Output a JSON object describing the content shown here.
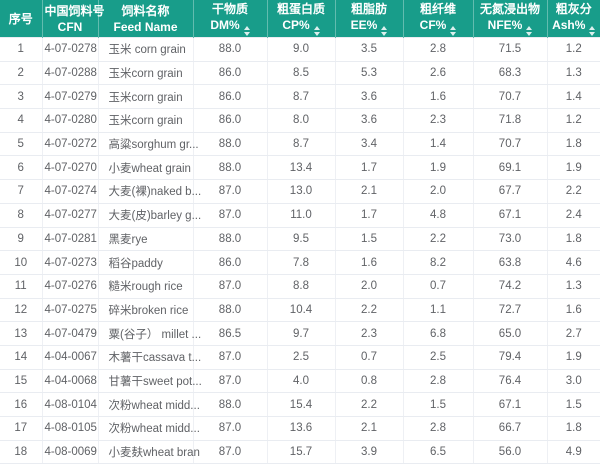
{
  "colors": {
    "header_bg": "#189d8a",
    "header_text": "#ffffff",
    "row_border": "#e9ecf1",
    "cell_text": "#606266"
  },
  "table": {
    "columns": [
      {
        "key": "index",
        "zh": "序号",
        "en": "",
        "sortable": false
      },
      {
        "key": "cfn",
        "zh": "中国饲料号",
        "en": "CFN",
        "sortable": false
      },
      {
        "key": "name",
        "zh": "饲料名称",
        "en": "Feed Name",
        "sortable": false
      },
      {
        "key": "dm",
        "zh": "干物质",
        "en": "DM%",
        "sortable": true
      },
      {
        "key": "cp",
        "zh": "粗蛋白质",
        "en": "CP%",
        "sortable": true
      },
      {
        "key": "ee",
        "zh": "粗脂肪",
        "en": "EE%",
        "sortable": true
      },
      {
        "key": "cf",
        "zh": "粗纤维",
        "en": "CF%",
        "sortable": true
      },
      {
        "key": "nfe",
        "zh": "无氮浸出物",
        "en": "NFE%",
        "sortable": true
      },
      {
        "key": "ash",
        "zh": "粗灰分",
        "en": "Ash%",
        "sortable": true
      }
    ],
    "rows": [
      {
        "index": "1",
        "cfn": "4-07-0278",
        "name": "玉米 corn grain",
        "dm": "88.0",
        "cp": "9.0",
        "ee": "3.5",
        "cf": "2.8",
        "nfe": "71.5",
        "ash": "1.2"
      },
      {
        "index": "2",
        "cfn": "4-07-0288",
        "name": "玉米corn grain",
        "dm": "86.0",
        "cp": "8.5",
        "ee": "5.3",
        "cf": "2.6",
        "nfe": "68.3",
        "ash": "1.3"
      },
      {
        "index": "3",
        "cfn": "4-07-0279",
        "name": "玉米corn grain",
        "dm": "86.0",
        "cp": "8.7",
        "ee": "3.6",
        "cf": "1.6",
        "nfe": "70.7",
        "ash": "1.4"
      },
      {
        "index": "4",
        "cfn": "4-07-0280",
        "name": "玉米corn grain",
        "dm": "86.0",
        "cp": "8.0",
        "ee": "3.6",
        "cf": "2.3",
        "nfe": "71.8",
        "ash": "1.2"
      },
      {
        "index": "5",
        "cfn": "4-07-0272",
        "name": "高粱sorghum gr...",
        "dm": "88.0",
        "cp": "8.7",
        "ee": "3.4",
        "cf": "1.4",
        "nfe": "70.7",
        "ash": "1.8"
      },
      {
        "index": "6",
        "cfn": "4-07-0270",
        "name": "小麦wheat grain",
        "dm": "88.0",
        "cp": "13.4",
        "ee": "1.7",
        "cf": "1.9",
        "nfe": "69.1",
        "ash": "1.9"
      },
      {
        "index": "7",
        "cfn": "4-07-0274",
        "name": "大麦(裸)naked b...",
        "dm": "87.0",
        "cp": "13.0",
        "ee": "2.1",
        "cf": "2.0",
        "nfe": "67.7",
        "ash": "2.2"
      },
      {
        "index": "8",
        "cfn": "4-07-0277",
        "name": "大麦(皮)barley g...",
        "dm": "87.0",
        "cp": "11.0",
        "ee": "1.7",
        "cf": "4.8",
        "nfe": "67.1",
        "ash": "2.4"
      },
      {
        "index": "9",
        "cfn": "4-07-0281",
        "name": "黑麦rye",
        "dm": "88.0",
        "cp": "9.5",
        "ee": "1.5",
        "cf": "2.2",
        "nfe": "73.0",
        "ash": "1.8"
      },
      {
        "index": "10",
        "cfn": "4-07-0273",
        "name": "稻谷paddy",
        "dm": "86.0",
        "cp": "7.8",
        "ee": "1.6",
        "cf": "8.2",
        "nfe": "63.8",
        "ash": "4.6"
      },
      {
        "index": "11",
        "cfn": "4-07-0276",
        "name": "糙米rough rice",
        "dm": "87.0",
        "cp": "8.8",
        "ee": "2.0",
        "cf": "0.7",
        "nfe": "74.2",
        "ash": "1.3"
      },
      {
        "index": "12",
        "cfn": "4-07-0275",
        "name": "碎米broken rice",
        "dm": "88.0",
        "cp": "10.4",
        "ee": "2.2",
        "cf": "1.1",
        "nfe": "72.7",
        "ash": "1.6"
      },
      {
        "index": "13",
        "cfn": "4-07-0479",
        "name": "粟(谷子） millet ...",
        "dm": "86.5",
        "cp": "9.7",
        "ee": "2.3",
        "cf": "6.8",
        "nfe": "65.0",
        "ash": "2.7"
      },
      {
        "index": "14",
        "cfn": "4-04-0067",
        "name": "木薯干cassava t...",
        "dm": "87.0",
        "cp": "2.5",
        "ee": "0.7",
        "cf": "2.5",
        "nfe": "79.4",
        "ash": "1.9"
      },
      {
        "index": "15",
        "cfn": "4-04-0068",
        "name": "甘薯干sweet pot...",
        "dm": "87.0",
        "cp": "4.0",
        "ee": "0.8",
        "cf": "2.8",
        "nfe": "76.4",
        "ash": "3.0"
      },
      {
        "index": "16",
        "cfn": "4-08-0104",
        "name": "次粉wheat midd...",
        "dm": "88.0",
        "cp": "15.4",
        "ee": "2.2",
        "cf": "1.5",
        "nfe": "67.1",
        "ash": "1.5"
      },
      {
        "index": "17",
        "cfn": "4-08-0105",
        "name": "次粉wheat midd...",
        "dm": "87.0",
        "cp": "13.6",
        "ee": "2.1",
        "cf": "2.8",
        "nfe": "66.7",
        "ash": "1.8"
      },
      {
        "index": "18",
        "cfn": "4-08-0069",
        "name": "小麦麸wheat bran",
        "dm": "87.0",
        "cp": "15.7",
        "ee": "3.9",
        "cf": "6.5",
        "nfe": "56.0",
        "ash": "4.9"
      }
    ]
  }
}
